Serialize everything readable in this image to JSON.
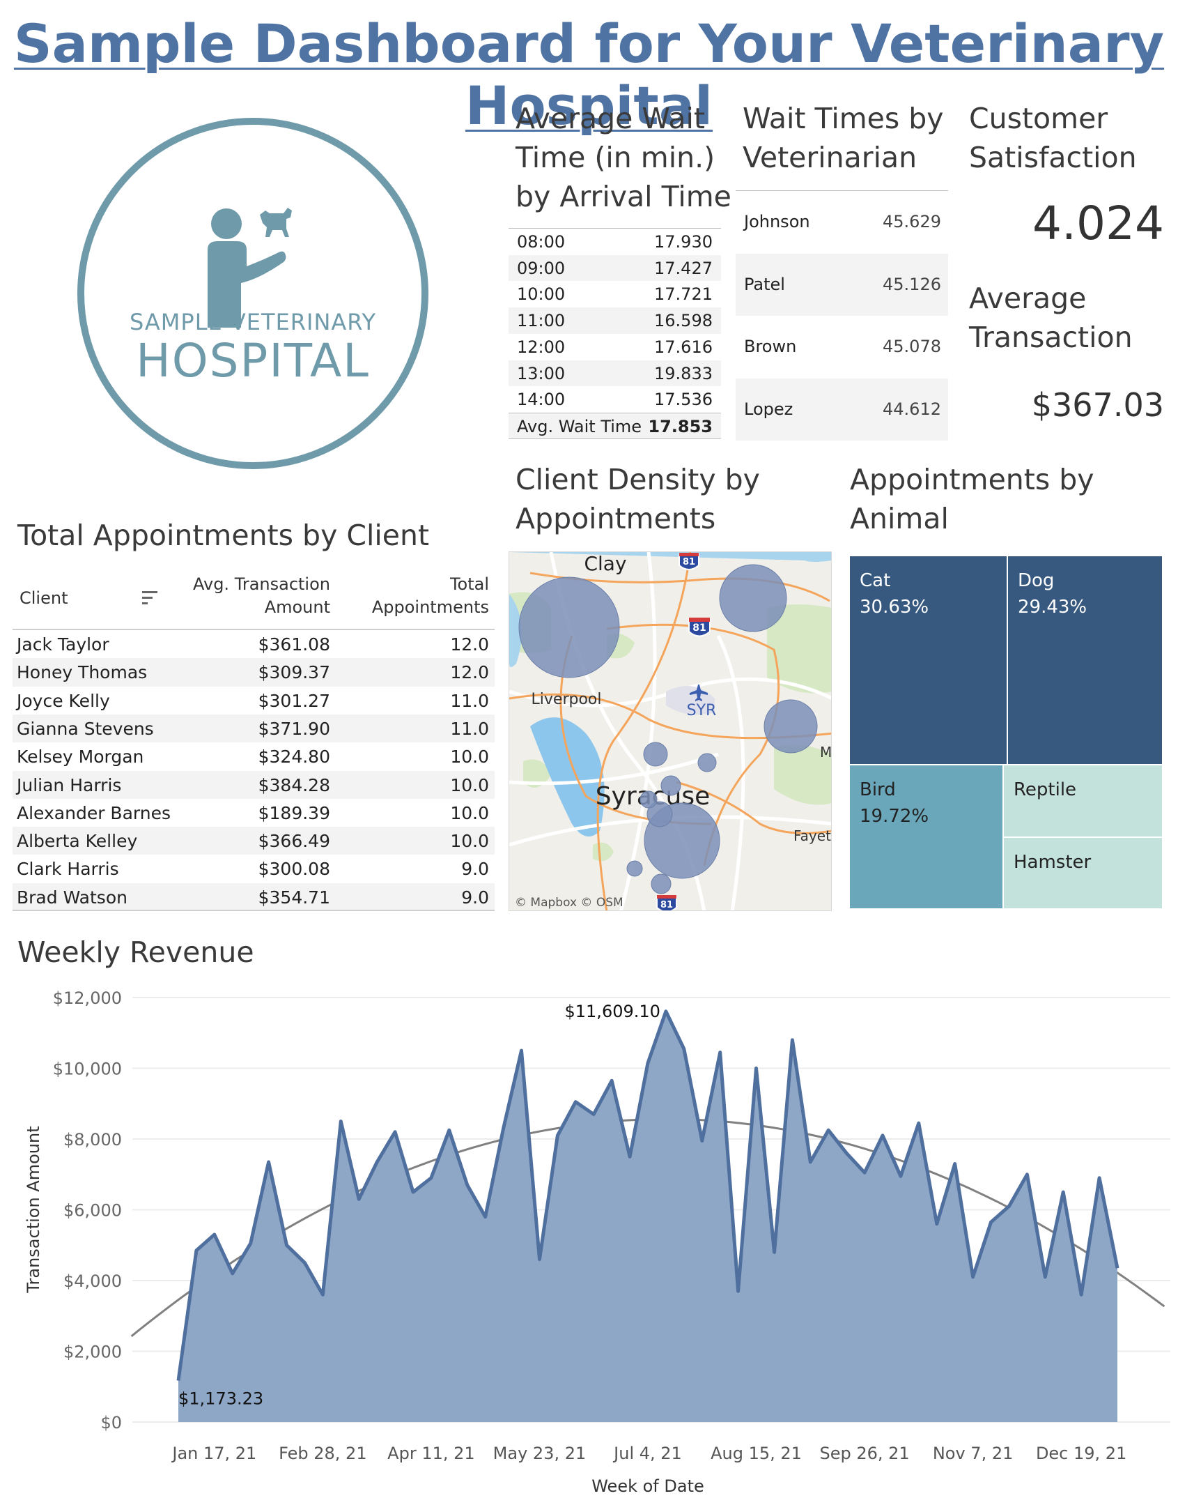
{
  "title": "Sample Dashboard for Your Veterinary Hospital",
  "logo": {
    "line1": "SAMPLE VETERINARY",
    "line2": "HOSPITAL"
  },
  "wait_by_arrival": {
    "title_lines": [
      "Average Wait",
      "Time (in min.)",
      "by Arrival Time"
    ],
    "rows": [
      {
        "time": "08:00",
        "value": "17.930"
      },
      {
        "time": "09:00",
        "value": "17.427"
      },
      {
        "time": "10:00",
        "value": "17.721"
      },
      {
        "time": "11:00",
        "value": "16.598"
      },
      {
        "time": "12:00",
        "value": "17.616"
      },
      {
        "time": "13:00",
        "value": "19.833"
      },
      {
        "time": "14:00",
        "value": "17.536"
      }
    ],
    "total": {
      "label": "Avg. Wait Time",
      "value": "17.853"
    }
  },
  "wait_by_vet": {
    "title_lines": [
      "Wait Times by",
      "Veterinarian"
    ],
    "rows": [
      {
        "name": "Johnson",
        "value": "45.629"
      },
      {
        "name": "Patel",
        "value": "45.126"
      },
      {
        "name": "Brown",
        "value": "45.078"
      },
      {
        "name": "Lopez",
        "value": "44.612"
      }
    ]
  },
  "kpis": {
    "satisfaction_title_lines": [
      "Customer",
      "Satisfaction"
    ],
    "satisfaction_value": "4.024",
    "transaction_title_lines": [
      "Average",
      "Transaction"
    ],
    "transaction_value": "$367.03"
  },
  "clients": {
    "title": "Total Appointments by Client",
    "col_client": "Client",
    "col_avg_lines": [
      "Avg. Transaction",
      "Amount"
    ],
    "col_total_lines": [
      "Total",
      "Appointments"
    ],
    "rows": [
      {
        "name": "Jack Taylor",
        "avg": "$361.08",
        "total": "12.0"
      },
      {
        "name": "Honey Thomas",
        "avg": "$309.37",
        "total": "12.0"
      },
      {
        "name": "Joyce Kelly",
        "avg": "$301.27",
        "total": "11.0"
      },
      {
        "name": "Gianna Stevens",
        "avg": "$371.90",
        "total": "11.0"
      },
      {
        "name": "Kelsey Morgan",
        "avg": "$324.80",
        "total": "10.0"
      },
      {
        "name": "Julian Harris",
        "avg": "$384.28",
        "total": "10.0"
      },
      {
        "name": "Alexander Barnes",
        "avg": "$189.39",
        "total": "10.0"
      },
      {
        "name": "Alberta Kelley",
        "avg": "$366.49",
        "total": "10.0"
      },
      {
        "name": "Clark Harris",
        "avg": "$300.08",
        "total": "9.0"
      },
      {
        "name": "Brad Watson",
        "avg": "$354.71",
        "total": "9.0"
      }
    ]
  },
  "map": {
    "title_lines": [
      "Client Density by",
      "Appointments"
    ],
    "labels": {
      "clay": "Clay",
      "liverpool": "Liverpool",
      "syr": "SYR",
      "syracuse": "Syracuse",
      "fayette": "Fayet",
      "m": "M",
      "highway": "81"
    },
    "attribution": "© Mapbox  © OSM",
    "bubble_color": "#7b8fb8"
  },
  "animals": {
    "title_lines": [
      "Appointments by",
      "Animal"
    ],
    "cells": [
      {
        "name": "Cat",
        "pct": "30.63%",
        "color": "#37587f"
      },
      {
        "name": "Dog",
        "pct": "29.43%",
        "color": "#37587f"
      },
      {
        "name": "Bird",
        "pct": "19.72%",
        "color": "#6aa7ba"
      },
      {
        "name": "Reptile",
        "pct": "",
        "color": "#c4e2dc"
      },
      {
        "name": "Hamster",
        "pct": "",
        "color": "#c4e2dc"
      }
    ]
  },
  "chart_data": {
    "type": "area",
    "title": "Weekly Revenue",
    "xlabel": "Week of Date",
    "ylabel": "Transaction Amount",
    "ylim": [
      0,
      12000
    ],
    "y_ticks": [
      "$0",
      "$2,000",
      "$4,000",
      "$6,000",
      "$8,000",
      "$10,000",
      "$12,000"
    ],
    "x_ticks": [
      "Jan 17, 21",
      "Feb 28, 21",
      "Apr 11, 21",
      "May 23, 21",
      "Jul 4, 21",
      "Aug 15, 21",
      "Sep 26, 21",
      "Nov 7, 21",
      "Dec 19, 21"
    ],
    "x_start": "Jan 3, 21",
    "values": [
      1173.23,
      4850,
      5300,
      4200,
      5050,
      7350,
      5000,
      4500,
      3600,
      8500,
      6300,
      7350,
      8200,
      6500,
      6900,
      8250,
      6700,
      5800,
      8300,
      10500,
      4600,
      8100,
      9050,
      8700,
      9650,
      7500,
      10150,
      11609.1,
      10550,
      7950,
      10450,
      3700,
      10000,
      4800,
      10800,
      7350,
      8250,
      7600,
      7050,
      8100,
      6950,
      8450,
      5600,
      7300,
      4100,
      5650,
      6100,
      7000,
      4100,
      6500,
      3600,
      6900,
      4350
    ],
    "annotations": [
      {
        "label": "$1,173.23"
      },
      {
        "label": "$11,609.10"
      }
    ],
    "trend": "polynomial",
    "area_color": "#8ea7c6",
    "line_color": "#4f6f9e",
    "grid": true
  }
}
